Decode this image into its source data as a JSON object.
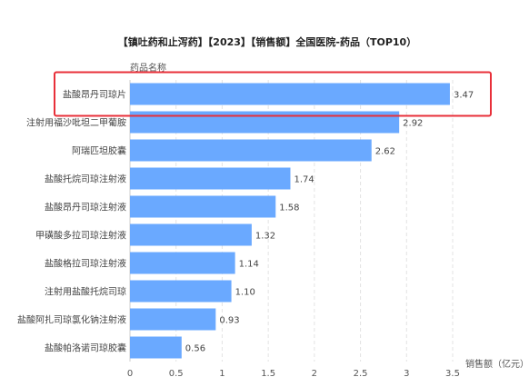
{
  "chart_data": {
    "type": "bar",
    "orientation": "horizontal",
    "title": "【镇吐药和止泻药】【2023】【销售额】全国医院-药品（TOP10）",
    "ylabel": "药品名称",
    "xlabel": "销售额（亿元）",
    "categories": [
      "盐酸昂丹司琼片",
      "注射用福沙吡坦二甲葡胺",
      "阿瑞匹坦胶囊",
      "盐酸托烷司琼注射液",
      "盐酸昂丹司琼注射液",
      "甲磺酸多拉司琼注射液",
      "盐酸格拉司琼注射液",
      "注射用盐酸托烷司琼",
      "盐酸阿扎司琼氯化钠注射液",
      "盐酸帕洛诺司琼胶囊"
    ],
    "values": [
      3.47,
      2.92,
      2.62,
      1.74,
      1.58,
      1.32,
      1.14,
      1.1,
      0.93,
      0.56
    ],
    "value_labels": [
      "3.47",
      "2.92",
      "2.62",
      "1.74",
      "1.58",
      "1.32",
      "1.14",
      "1.10",
      "0.93",
      "0.56"
    ],
    "xlim": [
      0,
      3.5
    ],
    "xticks": [
      "0",
      "0.5",
      "1",
      "1.5",
      "2",
      "2.5",
      "3",
      "3.5"
    ],
    "grid": "vertical dashed",
    "bar_color": "#6aa9ff",
    "highlight_color": "#e8303a",
    "highlighted_category": "盐酸昂丹司琼片"
  }
}
